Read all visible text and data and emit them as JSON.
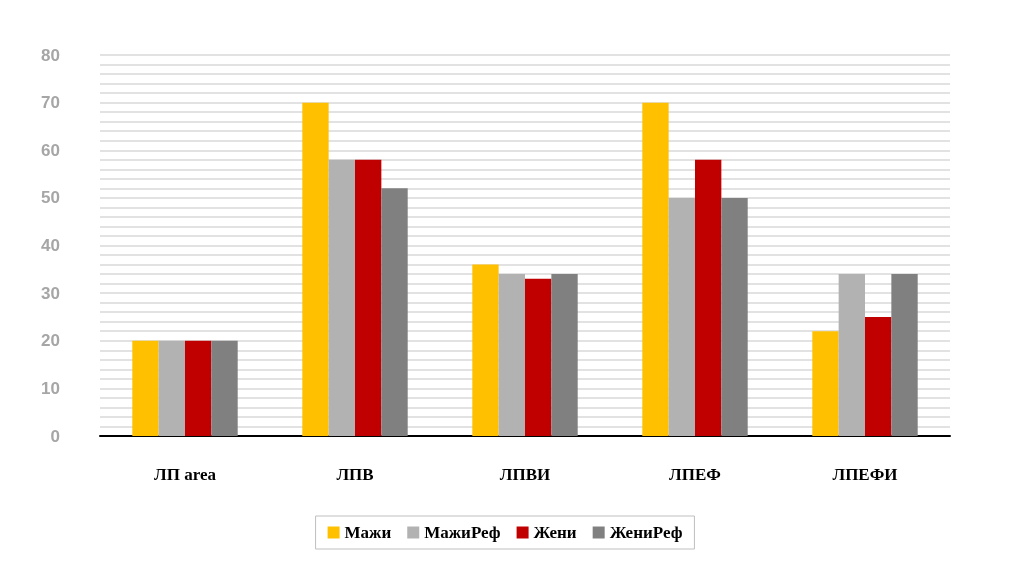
{
  "chart_data": {
    "type": "bar",
    "categories": [
      "ЛП area",
      "ЛПВ",
      "ЛПВИ",
      "ЛПЕФ",
      "ЛПЕФИ"
    ],
    "series": [
      {
        "name": "Мажи",
        "color": "#ffc000",
        "values": [
          20,
          70,
          36,
          70,
          22
        ]
      },
      {
        "name": "МажиРеф",
        "color": "#b2b2b2",
        "values": [
          20,
          58,
          34,
          50,
          34
        ]
      },
      {
        "name": "Жени",
        "color": "#c00000",
        "values": [
          20,
          58,
          33,
          58,
          25
        ]
      },
      {
        "name": "ЖениРеф",
        "color": "#808080",
        "values": [
          20,
          52,
          34,
          50,
          34
        ]
      }
    ],
    "ylim": [
      0,
      80
    ],
    "yticks": [
      0,
      {
        "value": 2,
        "label": null
      },
      {
        "value": 4,
        "label": null
      },
      {
        "value": 6,
        "label": null
      },
      {
        "value": 8,
        "label": null
      },
      10,
      {
        "value": 12,
        "label": null
      },
      {
        "value": 14,
        "label": null
      },
      {
        "value": 16,
        "label": null
      },
      {
        "value": 18,
        "label": null
      },
      20,
      {
        "value": 22,
        "label": null
      },
      {
        "value": 24,
        "label": null
      },
      {
        "value": 26,
        "label": null
      },
      {
        "value": 28,
        "label": null
      },
      30,
      {
        "value": 32,
        "label": null
      },
      {
        "value": 34,
        "label": null
      },
      {
        "value": 36,
        "label": null
      },
      {
        "value": 38,
        "label": null
      },
      40,
      {
        "value": 42,
        "label": null
      },
      {
        "value": 44,
        "label": null
      },
      {
        "value": 46,
        "label": null
      },
      {
        "value": 48,
        "label": null
      },
      50,
      {
        "value": 52,
        "label": null
      },
      {
        "value": 54,
        "label": null
      },
      {
        "value": 56,
        "label": null
      },
      {
        "value": 58,
        "label": null
      },
      60,
      {
        "value": 62,
        "label": null
      },
      {
        "value": 64,
        "label": null
      },
      {
        "value": 66,
        "label": null
      },
      {
        "value": 68,
        "label": null
      },
      70,
      {
        "value": 72,
        "label": null
      },
      {
        "value": 74,
        "label": null
      },
      {
        "value": 76,
        "label": null
      },
      {
        "value": 78,
        "label": null
      },
      80
    ],
    "grid": "y",
    "legend": "bottom"
  }
}
